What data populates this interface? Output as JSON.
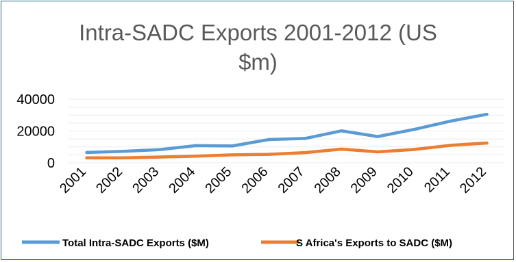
{
  "chart_data": {
    "type": "line",
    "title_lines": [
      "Intra-SADC Exports 2001-2012 (US",
      "$m)"
    ],
    "categories": [
      "2001",
      "2002",
      "2003",
      "2004",
      "2005",
      "2006",
      "2007",
      "2008",
      "2009",
      "2010",
      "2011",
      "2012"
    ],
    "series": [
      {
        "name": "Total Intra-SADC Exports ($M)",
        "color": "#5b9bd5",
        "values": [
          6500,
          7200,
          8300,
          10800,
          10600,
          14600,
          15300,
          20100,
          16500,
          21000,
          26200,
          30500
        ]
      },
      {
        "name": "S Africa's Exports to SADC ($M)",
        "color": "#ed7d31",
        "values": [
          3100,
          3100,
          3600,
          4200,
          5000,
          5300,
          6400,
          8600,
          6900,
          8400,
          11000,
          12400
        ]
      }
    ],
    "yticks": [
      0,
      20000,
      40000
    ],
    "ylim": [
      0,
      40000
    ],
    "grid": true,
    "legend_position": "bottom"
  }
}
